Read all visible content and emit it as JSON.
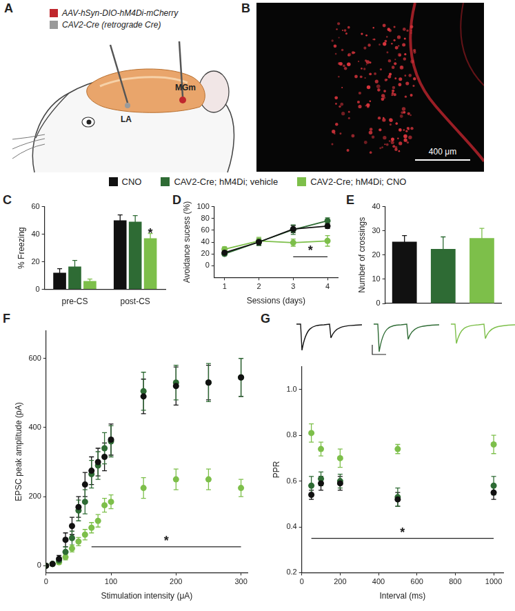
{
  "panel_labels": [
    "A",
    "B",
    "C",
    "D",
    "E",
    "F",
    "G"
  ],
  "panel_a": {
    "injections": [
      {
        "label": "AAV-hSyn-DIO-hM4Di-mCherry",
        "color": "#c0272d"
      },
      {
        "label": "CAV2-Cre (retrograde Cre)",
        "color": "#9a9a9a"
      }
    ],
    "regions": [
      "LA",
      "MGm"
    ]
  },
  "panel_b": {
    "scale_bar": "400 μm"
  },
  "legend": [
    {
      "name": "CNO",
      "color": "#111111"
    },
    {
      "name": "CAV2-Cre; hM4Di; vehicle",
      "color": "#2e6b34"
    },
    {
      "name": "CAV2-Cre; hM4Di; CNO",
      "color": "#7dbf4a"
    }
  ],
  "chart_data": [
    {
      "type": "bar",
      "y_label": "% Freezing",
      "categories": [
        "pre-CS",
        "post-CS"
      ],
      "ylim": [
        0,
        60
      ],
      "yticks": [
        0,
        20,
        40,
        60
      ],
      "grid": false,
      "series": [
        {
          "name": "CNO",
          "color": "#111111",
          "values": [
            12,
            50
          ],
          "errors": [
            3,
            4
          ]
        },
        {
          "name": "CAV2-Cre; hM4Di; vehicle",
          "color": "#2e6b34",
          "values": [
            16.5,
            49
          ],
          "errors": [
            4.5,
            4.5
          ]
        },
        {
          "name": "CAV2-Cre; hM4Di; CNO",
          "color": "#7dbf4a",
          "values": [
            6,
            37
          ],
          "errors": [
            1.5,
            3.5
          ]
        }
      ],
      "annotations": [
        {
          "text": "*",
          "category": "post-CS",
          "series": "CAV2-Cre; hM4Di; CNO",
          "y": 42
        }
      ]
    },
    {
      "type": "line",
      "x_label": "Sessions (days)",
      "y_label": "Avoidance sucess (%)",
      "xlim": [
        0.7,
        4.3
      ],
      "xticks": [
        1,
        2,
        3,
        4
      ],
      "ylim": [
        -20,
        100
      ],
      "yticks": [
        0,
        20,
        40,
        60,
        80,
        100
      ],
      "grid": false,
      "x": [
        1,
        2,
        3,
        4
      ],
      "marker": "circle",
      "series": [
        {
          "name": "CNO",
          "color": "#111111",
          "values": [
            22,
            40,
            62,
            67
          ],
          "errors": [
            4,
            5,
            6,
            4
          ]
        },
        {
          "name": "CAV2-Cre; hM4Di; vehicle",
          "color": "#2e6b34",
          "values": [
            20,
            40,
            61,
            76
          ],
          "errors": [
            3,
            6,
            8,
            5
          ]
        },
        {
          "name": "CAV2-Cre; hM4Di; CNO",
          "color": "#7dbf4a",
          "values": [
            28,
            42,
            39,
            42
          ],
          "errors": [
            4,
            6,
            6,
            9
          ]
        }
      ],
      "annotations": [
        {
          "text": "*",
          "x": [
            3,
            4
          ],
          "y": 15
        }
      ]
    },
    {
      "type": "bar",
      "y_label": "Number of crossings",
      "categories": [
        null,
        null,
        null
      ],
      "ylim": [
        0,
        40
      ],
      "yticks": [
        0,
        10,
        20,
        30,
        40
      ],
      "grid": false,
      "tick_labels": "y",
      "values": [
        25.5,
        22.5,
        27
      ],
      "errors": [
        2.5,
        5,
        4
      ],
      "colors": [
        "#111111",
        "#2e6b34",
        "#7dbf4a"
      ]
    },
    {
      "type": "scatter",
      "x_label": "Stimulation intensity (μA)",
      "y_label": "EPSC peak amplitude (pA)",
      "xlim": [
        0,
        310
      ],
      "xticks": [
        0,
        100,
        200,
        300
      ],
      "ylim": [
        -20,
        680
      ],
      "yticks": [
        0,
        200,
        400,
        600
      ],
      "grid": false,
      "x": [
        0,
        10,
        20,
        30,
        40,
        50,
        60,
        70,
        80,
        90,
        100,
        150,
        200,
        250,
        300
      ],
      "marker": "circle",
      "series": [
        {
          "name": "CNO",
          "color": "#111111",
          "values": [
            0,
            5,
            20,
            75,
            115,
            170,
            235,
            275,
            300,
            315,
            365,
            490,
            520,
            530,
            545
          ],
          "errors": [
            3,
            5,
            10,
            20,
            25,
            30,
            35,
            40,
            40,
            40,
            45,
            50,
            55,
            50,
            55
          ]
        },
        {
          "name": "CAV2-Cre; hM4Di; vehicle",
          "color": "#2e6b34",
          "values": [
            0,
            5,
            15,
            40,
            80,
            160,
            185,
            265,
            290,
            340,
            360,
            505,
            530,
            530,
            545
          ],
          "errors": [
            3,
            5,
            8,
            15,
            20,
            30,
            35,
            40,
            40,
            45,
            45,
            55,
            50,
            55,
            55
          ]
        },
        {
          "name": "CAV2-Cre; hM4Di; CNO",
          "color": "#7dbf4a",
          "values": [
            0,
            5,
            10,
            25,
            50,
            70,
            90,
            110,
            130,
            175,
            185,
            225,
            250,
            250,
            225
          ],
          "errors": [
            3,
            4,
            6,
            8,
            10,
            12,
            15,
            15,
            18,
            20,
            20,
            30,
            30,
            30,
            25
          ]
        }
      ],
      "annotations": [
        {
          "text": "*",
          "x": [
            70,
            300
          ],
          "y": 55
        }
      ]
    },
    {
      "type": "scatter",
      "x_label": "Interval (ms)",
      "y_label": "PPR",
      "xlim": [
        0,
        1050
      ],
      "xticks": [
        0,
        200,
        400,
        600,
        800,
        1000
      ],
      "ylim": [
        0.2,
        1.1
      ],
      "yticks": [
        0.2,
        0.4,
        0.6,
        0.8,
        {
          "value": 1,
          "label": "1.0"
        }
      ],
      "grid": false,
      "x": [
        50,
        100,
        200,
        500,
        1000
      ],
      "marker": "circle",
      "series": [
        {
          "name": "CNO",
          "color": "#111111",
          "values": [
            0.54,
            0.59,
            0.59,
            0.52,
            0.55
          ],
          "errors": [
            0.02,
            0.03,
            0.03,
            0.03,
            0.03
          ]
        },
        {
          "name": "CAV2-Cre; hM4Di; vehicle",
          "color": "#2e6b34",
          "values": [
            0.58,
            0.61,
            0.6,
            0.53,
            0.58
          ],
          "errors": [
            0.04,
            0.03,
            0.03,
            0.04,
            0.04
          ]
        },
        {
          "name": "CAV2-Cre; hM4Di; CNO",
          "color": "#7dbf4a",
          "values": [
            0.81,
            0.74,
            0.7,
            0.74,
            0.76
          ],
          "errors": [
            0.04,
            0.03,
            0.04,
            0.02,
            0.04
          ]
        }
      ],
      "annotations": [
        {
          "text": "*",
          "x": [
            50,
            1000
          ],
          "y": 0.35
        }
      ]
    }
  ]
}
